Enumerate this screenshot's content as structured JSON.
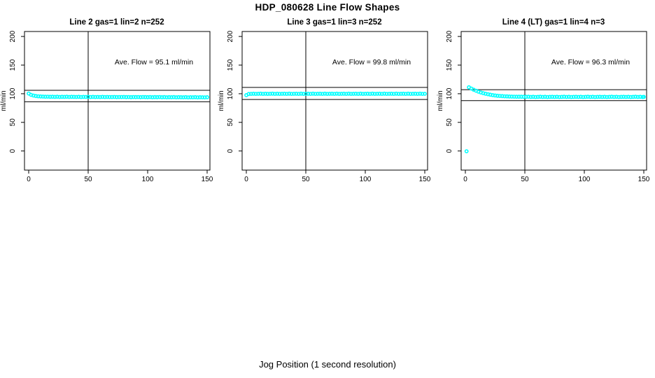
{
  "figure": {
    "title": "HDP_080628  Line Flow Shapes",
    "xlabel": "Jog Position (1 second resolution)",
    "background_color": "#ffffff",
    "axis_color": "#000000"
  },
  "chart_data": {
    "type": "scatter",
    "marker": "open-circle",
    "point_color": "#00FFFF",
    "xlabel": "Jog Position (1 second resolution)",
    "ylabel": "ml/min",
    "xlim": [
      -3.5,
      152.5
    ],
    "ylim": [
      -33,
      209
    ],
    "x_ticks": [
      0,
      50,
      100,
      150
    ],
    "y_ticks": [
      0,
      50,
      100,
      150,
      200
    ],
    "grid": false,
    "legend_position": "none",
    "panels": [
      {
        "title": "Line 2 gas=1 lin=2 n=252",
        "annotation": "Ave. Flow =  95.1  ml/min",
        "ave_flow": 95.1,
        "n": 252,
        "vline_x": 50,
        "hlines": [
          106,
          86
        ],
        "points": [
          [
            0,
            100.4
          ],
          [
            2,
            98.1
          ],
          [
            4,
            96.8
          ],
          [
            6,
            96.0
          ],
          [
            8,
            95.5
          ],
          [
            10,
            95.2
          ],
          [
            12,
            95.0
          ],
          [
            14,
            94.8
          ],
          [
            16,
            94.9
          ],
          [
            18,
            94.6
          ],
          [
            20,
            94.8
          ],
          [
            22,
            94.5
          ],
          [
            24,
            94.7
          ],
          [
            26,
            94.4
          ],
          [
            28,
            94.6
          ],
          [
            30,
            94.5
          ],
          [
            32,
            94.7
          ],
          [
            34,
            94.4
          ],
          [
            36,
            94.6
          ],
          [
            38,
            94.5
          ],
          [
            40,
            94.4
          ],
          [
            42,
            94.6
          ],
          [
            44,
            94.3
          ],
          [
            46,
            94.5
          ],
          [
            48,
            94.4
          ],
          [
            50,
            94.6
          ],
          [
            52,
            94.3
          ],
          [
            54,
            94.5
          ],
          [
            56,
            94.2
          ],
          [
            58,
            94.4
          ],
          [
            60,
            94.3
          ],
          [
            62,
            94.5
          ],
          [
            64,
            94.2
          ],
          [
            66,
            94.4
          ],
          [
            68,
            94.3
          ],
          [
            70,
            94.2
          ],
          [
            72,
            94.4
          ],
          [
            74,
            94.1
          ],
          [
            76,
            94.3
          ],
          [
            78,
            94.2
          ],
          [
            80,
            94.4
          ],
          [
            82,
            94.1
          ],
          [
            84,
            94.3
          ],
          [
            86,
            94.0
          ],
          [
            88,
            94.2
          ],
          [
            90,
            94.1
          ],
          [
            92,
            94.3
          ],
          [
            94,
            94.0
          ],
          [
            96,
            94.2
          ],
          [
            98,
            94.1
          ],
          [
            100,
            94.0
          ],
          [
            102,
            94.2
          ],
          [
            104,
            93.9
          ],
          [
            106,
            94.1
          ],
          [
            108,
            94.0
          ],
          [
            110,
            94.2
          ],
          [
            112,
            93.9
          ],
          [
            114,
            94.1
          ],
          [
            116,
            93.8
          ],
          [
            118,
            94.0
          ],
          [
            120,
            93.9
          ],
          [
            122,
            94.1
          ],
          [
            124,
            93.8
          ],
          [
            126,
            94.0
          ],
          [
            128,
            93.9
          ],
          [
            130,
            93.8
          ],
          [
            132,
            94.0
          ],
          [
            134,
            93.7
          ],
          [
            136,
            93.9
          ],
          [
            138,
            93.8
          ],
          [
            140,
            94.0
          ],
          [
            142,
            93.7
          ],
          [
            144,
            93.9
          ],
          [
            146,
            93.8
          ],
          [
            148,
            93.7
          ],
          [
            150,
            93.9
          ]
        ]
      },
      {
        "title": "Line 3 gas=1 lin=3 n=252",
        "annotation": "Ave. Flow =  99.8  ml/min",
        "ave_flow": 99.8,
        "n": 252,
        "vline_x": 50,
        "hlines": [
          111,
          90
        ],
        "points": [
          [
            0,
            97.6
          ],
          [
            2,
            99.5
          ],
          [
            4,
            99.8
          ],
          [
            6,
            100.0
          ],
          [
            8,
            99.7
          ],
          [
            10,
            99.9
          ],
          [
            12,
            100.1
          ],
          [
            14,
            99.8
          ],
          [
            16,
            100.0
          ],
          [
            18,
            99.7
          ],
          [
            20,
            99.9
          ],
          [
            22,
            100.1
          ],
          [
            24,
            99.8
          ],
          [
            26,
            100.0
          ],
          [
            28,
            99.7
          ],
          [
            30,
            99.9
          ],
          [
            32,
            100.0
          ],
          [
            34,
            99.8
          ],
          [
            36,
            100.1
          ],
          [
            38,
            99.7
          ],
          [
            40,
            99.9
          ],
          [
            42,
            100.0
          ],
          [
            44,
            99.8
          ],
          [
            46,
            100.1
          ],
          [
            48,
            99.7
          ],
          [
            50,
            99.9
          ],
          [
            52,
            100.0
          ],
          [
            54,
            99.8
          ],
          [
            56,
            100.1
          ],
          [
            58,
            99.7
          ],
          [
            60,
            99.9
          ],
          [
            62,
            100.0
          ],
          [
            64,
            99.8
          ],
          [
            66,
            100.1
          ],
          [
            68,
            99.7
          ],
          [
            70,
            99.9
          ],
          [
            72,
            100.0
          ],
          [
            74,
            99.8
          ],
          [
            76,
            100.1
          ],
          [
            78,
            99.7
          ],
          [
            80,
            99.9
          ],
          [
            82,
            100.0
          ],
          [
            84,
            99.8
          ],
          [
            86,
            100.1
          ],
          [
            88,
            99.7
          ],
          [
            90,
            99.9
          ],
          [
            92,
            100.0
          ],
          [
            94,
            99.8
          ],
          [
            96,
            100.1
          ],
          [
            98,
            99.7
          ],
          [
            100,
            99.9
          ],
          [
            102,
            100.0
          ],
          [
            104,
            99.8
          ],
          [
            106,
            100.1
          ],
          [
            108,
            99.7
          ],
          [
            110,
            99.9
          ],
          [
            112,
            100.0
          ],
          [
            114,
            99.8
          ],
          [
            116,
            100.1
          ],
          [
            118,
            99.7
          ],
          [
            120,
            99.9
          ],
          [
            122,
            100.0
          ],
          [
            124,
            99.8
          ],
          [
            126,
            100.1
          ],
          [
            128,
            99.7
          ],
          [
            130,
            99.9
          ],
          [
            132,
            100.0
          ],
          [
            134,
            99.8
          ],
          [
            136,
            100.1
          ],
          [
            138,
            99.7
          ],
          [
            140,
            99.9
          ],
          [
            142,
            100.0
          ],
          [
            144,
            99.8
          ],
          [
            146,
            100.1
          ],
          [
            148,
            99.7
          ],
          [
            150,
            99.9
          ]
        ]
      },
      {
        "title": "Line 4 (LT) gas=1 lin=4 n=3",
        "annotation": "Ave. Flow =  96.3  ml/min",
        "ave_flow": 96.3,
        "n": 3,
        "vline_x": 50,
        "hlines": [
          107,
          88
        ],
        "points": [
          [
            1,
            -0.5
          ],
          [
            3,
            111.2
          ],
          [
            5,
            109.0
          ],
          [
            7,
            107.0
          ],
          [
            9,
            105.2
          ],
          [
            11,
            103.6
          ],
          [
            13,
            102.2
          ],
          [
            15,
            101.0
          ],
          [
            17,
            100.0
          ],
          [
            19,
            99.1
          ],
          [
            21,
            98.3
          ],
          [
            23,
            97.6
          ],
          [
            25,
            97.0
          ],
          [
            27,
            96.5
          ],
          [
            29,
            96.1
          ],
          [
            31,
            95.8
          ],
          [
            33,
            95.5
          ],
          [
            35,
            95.3
          ],
          [
            37,
            95.1
          ],
          [
            39,
            95.0
          ],
          [
            41,
            94.9
          ],
          [
            43,
            94.8
          ],
          [
            45,
            94.7
          ],
          [
            47,
            94.7
          ],
          [
            49,
            94.6
          ],
          [
            51,
            94.6
          ],
          [
            53,
            94.7
          ],
          [
            55,
            94.4
          ],
          [
            57,
            94.6
          ],
          [
            59,
            94.3
          ],
          [
            61,
            94.5
          ],
          [
            63,
            94.7
          ],
          [
            65,
            94.4
          ],
          [
            67,
            94.6
          ],
          [
            69,
            94.3
          ],
          [
            71,
            94.5
          ],
          [
            73,
            94.6
          ],
          [
            75,
            94.4
          ],
          [
            77,
            94.6
          ],
          [
            79,
            94.3
          ],
          [
            81,
            94.5
          ],
          [
            83,
            94.7
          ],
          [
            85,
            94.4
          ],
          [
            87,
            94.6
          ],
          [
            89,
            94.3
          ],
          [
            91,
            94.5
          ],
          [
            93,
            94.6
          ],
          [
            95,
            94.4
          ],
          [
            97,
            94.6
          ],
          [
            99,
            94.3
          ],
          [
            101,
            94.5
          ],
          [
            103,
            94.7
          ],
          [
            105,
            94.4
          ],
          [
            107,
            94.6
          ],
          [
            109,
            94.3
          ],
          [
            111,
            94.5
          ],
          [
            113,
            94.6
          ],
          [
            115,
            94.4
          ],
          [
            117,
            94.6
          ],
          [
            119,
            94.3
          ],
          [
            121,
            94.5
          ],
          [
            123,
            94.7
          ],
          [
            125,
            94.4
          ],
          [
            127,
            94.6
          ],
          [
            129,
            94.3
          ],
          [
            131,
            94.5
          ],
          [
            133,
            94.6
          ],
          [
            135,
            94.4
          ],
          [
            137,
            94.6
          ],
          [
            139,
            94.3
          ],
          [
            141,
            94.5
          ],
          [
            143,
            94.7
          ],
          [
            145,
            94.4
          ],
          [
            147,
            94.6
          ],
          [
            149,
            94.3
          ],
          [
            150,
            94.5
          ]
        ]
      }
    ]
  }
}
